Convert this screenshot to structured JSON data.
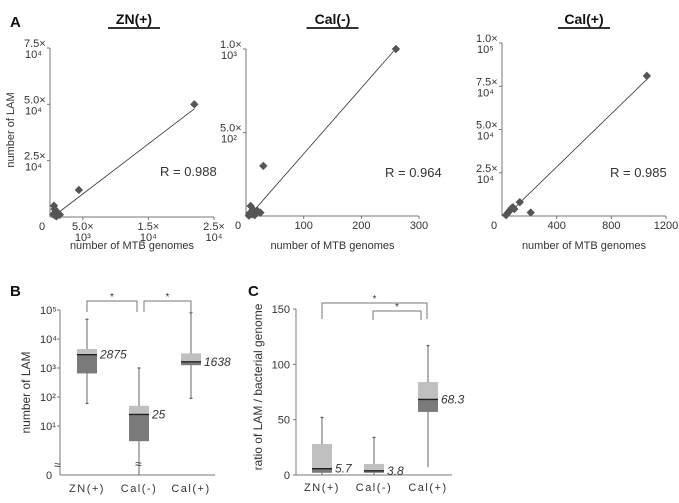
{
  "panels": {
    "A": "A",
    "B": "B",
    "C": "C"
  },
  "chart_data": [
    {
      "type": "scatter",
      "panel": "A",
      "title": "ZN(+)",
      "xlabel": "number of MTB genomes",
      "ylabel": "number of LAM",
      "xlim": [
        0,
        25000
      ],
      "ylim": [
        0,
        75000
      ],
      "xticks": [
        {
          "v": 0,
          "l1": "0",
          "l2": ""
        },
        {
          "v": 5000,
          "l1": "5.0×",
          "l2": "10³"
        },
        {
          "v": 15000,
          "l1": "1.5×",
          "l2": "10⁴"
        },
        {
          "v": 25000,
          "l1": "2.5×",
          "l2": "10⁴"
        }
      ],
      "yticks": [
        {
          "v": 25000,
          "l1": "2.5×",
          "l2": "10⁴"
        },
        {
          "v": 50000,
          "l1": "5.0×",
          "l2": "10⁴"
        },
        {
          "v": 75000,
          "l1": "7.5×",
          "l2": "10⁴"
        }
      ],
      "points": [
        [
          22000,
          50000
        ],
        [
          4400,
          12000
        ],
        [
          600,
          5000
        ],
        [
          700,
          3500
        ],
        [
          900,
          2500
        ],
        [
          1200,
          1800
        ],
        [
          500,
          1200
        ],
        [
          1500,
          1000
        ],
        [
          800,
          600
        ],
        [
          1000,
          300
        ]
      ],
      "fit": [
        [
          400,
          0
        ],
        [
          22000,
          48000
        ]
      ],
      "annotation": "R = 0.988"
    },
    {
      "type": "scatter",
      "panel": "A",
      "title": "Cal(-)",
      "xlabel": "number of MTB genomes",
      "ylabel": "",
      "xlim": [
        0,
        300
      ],
      "ylim": [
        0,
        1000
      ],
      "xticks": [
        {
          "v": 0,
          "l1": "0",
          "l2": ""
        },
        {
          "v": 100,
          "l1": "100",
          "l2": ""
        },
        {
          "v": 200,
          "l1": "200",
          "l2": ""
        },
        {
          "v": 300,
          "l1": "300",
          "l2": ""
        }
      ],
      "yticks": [
        {
          "v": 500,
          "l1": "5.0×",
          "l2": "10²"
        },
        {
          "v": 1000,
          "l1": "1.0×",
          "l2": "10³"
        }
      ],
      "points": [
        [
          260,
          1000
        ],
        [
          30,
          300
        ],
        [
          8,
          60
        ],
        [
          12,
          40
        ],
        [
          20,
          30
        ],
        [
          25,
          20
        ],
        [
          6,
          15
        ],
        [
          10,
          10
        ],
        [
          15,
          5
        ],
        [
          5,
          2
        ]
      ],
      "fit": [
        [
          8,
          10
        ],
        [
          258,
          995
        ]
      ],
      "annotation": "R = 0.964"
    },
    {
      "type": "scatter",
      "panel": "A",
      "title": "Cal(+)",
      "xlabel": "number of MTB genomes",
      "ylabel": "",
      "xlim": [
        0,
        1200
      ],
      "ylim": [
        0,
        100000
      ],
      "xticks": [
        {
          "v": 0,
          "l1": "0",
          "l2": ""
        },
        {
          "v": 400,
          "l1": "400",
          "l2": ""
        },
        {
          "v": 800,
          "l1": "800",
          "l2": ""
        },
        {
          "v": 1200,
          "l1": "1200",
          "l2": ""
        }
      ],
      "yticks": [
        {
          "v": 25000,
          "l1": "2.5×",
          "l2": "10⁴"
        },
        {
          "v": 50000,
          "l1": "5.0×",
          "l2": "10⁴"
        },
        {
          "v": 75000,
          "l1": "7.5×",
          "l2": "10⁴"
        },
        {
          "v": 100000,
          "l1": "1.0×",
          "l2": "10⁵"
        }
      ],
      "points": [
        [
          1060,
          81000
        ],
        [
          130,
          8000
        ],
        [
          210,
          2000
        ],
        [
          80,
          5000
        ],
        [
          60,
          3500
        ],
        [
          70,
          4500
        ],
        [
          50,
          2500
        ],
        [
          40,
          1500
        ],
        [
          30,
          500
        ],
        [
          90,
          4000
        ]
      ],
      "fit": [
        [
          30,
          0
        ],
        [
          1060,
          79000
        ]
      ],
      "annotation": "R = 0.985"
    },
    {
      "type": "box",
      "panel": "B",
      "ylabel": "number of LAM",
      "yscale": "log",
      "ylim": [
        1,
        100000
      ],
      "ytick_labels": [
        "0",
        "10¹",
        "10²",
        "10³",
        "10⁴",
        "10⁵"
      ],
      "categories": [
        "ZN(+)",
        "Cal(-)",
        "Cal(+)"
      ],
      "boxes": [
        {
          "min": 60,
          "q1": 650,
          "median": 2875,
          "q3": 4500,
          "max": 48000,
          "label": "2875"
        },
        {
          "min": 1,
          "q1": 3,
          "median": 25,
          "q3": 50,
          "max": 1000,
          "label": "25"
        },
        {
          "min": 90,
          "q1": 1250,
          "median": 1638,
          "q3": 3200,
          "max": 80000,
          "label": "1638"
        }
      ],
      "significance": [
        {
          "from": 0,
          "to": 1,
          "mark": "*"
        },
        {
          "from": 1,
          "to": 2,
          "mark": "*"
        }
      ]
    },
    {
      "type": "box",
      "panel": "C",
      "ylabel": "ratio of LAM / bacterial genome",
      "ylim": [
        0,
        150
      ],
      "yticks": [
        0,
        50,
        100,
        150
      ],
      "categories": [
        "ZN(+)",
        "Cal(-)",
        "Cal(+)"
      ],
      "boxes": [
        {
          "min": 0,
          "q1": 2,
          "median": 5.7,
          "q3": 28,
          "max": 52,
          "label": "5.7"
        },
        {
          "min": 0,
          "q1": 2,
          "median": 3.8,
          "q3": 10,
          "max": 34,
          "label": "3.8"
        },
        {
          "min": 7,
          "q1": 57,
          "median": 68.3,
          "q3": 84,
          "max": 117,
          "label": "68.3"
        }
      ],
      "significance": [
        {
          "from": 0,
          "to": 2,
          "mark": "*"
        },
        {
          "from": 1,
          "to": 2,
          "mark": "*"
        }
      ]
    }
  ]
}
